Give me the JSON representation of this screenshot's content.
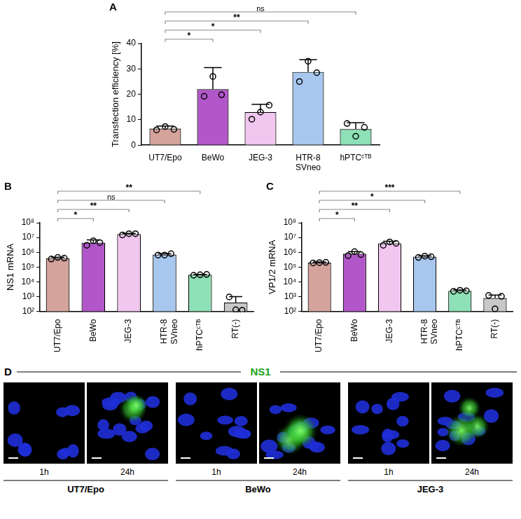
{
  "chart_data": [
    {
      "type": "bar",
      "panel_label": "A",
      "ylabel": "Transfection efficiency [%]",
      "categories": [
        "UT7/Epo",
        "BeWo",
        "JEG-3",
        "HTR-8 SVneo",
        "hPTCᶜᵀᴮ"
      ],
      "values": [
        6.5,
        22,
        13,
        28.8,
        6.3
      ],
      "errors": [
        1.0,
        8.5,
        3.0,
        4.8,
        2.5
      ],
      "points": [
        [
          6,
          7.3,
          6.2
        ],
        [
          19.2,
          27,
          19.8
        ],
        [
          10.2,
          13,
          15.7
        ],
        [
          25,
          33,
          28.5
        ],
        [
          8.5,
          3.5,
          7
        ]
      ],
      "colors": [
        "#d4a39c",
        "#b157c9",
        "#f1c6ef",
        "#a8c7ee",
        "#8ee0b6"
      ],
      "ylim": [
        0,
        40
      ],
      "yticks": [
        0,
        10,
        20,
        30,
        40
      ],
      "grid": false,
      "annotations": [
        {
          "from": "UT7/Epo",
          "to": "BeWo",
          "label": "*"
        },
        {
          "from": "UT7/Epo",
          "to": "JEG-3",
          "label": "*"
        },
        {
          "from": "UT7/Epo",
          "to": "HTR-8 SVneo",
          "label": "**"
        },
        {
          "from": "UT7/Epo",
          "to": "hPTCᶜᵀᴮ",
          "label": "ns"
        }
      ]
    },
    {
      "type": "bar",
      "panel_label": "B",
      "ylabel": "NS1 mRNA",
      "categories": [
        "UT7/Epo",
        "BeWo",
        "JEG-3",
        "HTR-8 SVneo",
        "hPTCᶜᵀᴮ",
        "RT(-)"
      ],
      "values": [
        400000,
        4500000,
        17000000,
        700000,
        30000,
        400
      ],
      "errors": [
        70000,
        2500000,
        2000000,
        100000,
        2000,
        600
      ],
      "points": [
        [
          350000,
          450000,
          400000
        ],
        [
          3000000,
          6000000,
          4500000
        ],
        [
          15000000,
          18000000,
          18000000
        ],
        [
          650000,
          650000,
          800000
        ],
        [
          28000,
          30000,
          32000
        ],
        [
          950,
          130,
          120
        ]
      ],
      "colors": [
        "#d4a39c",
        "#b157c9",
        "#f1c6ef",
        "#a8c7ee",
        "#8ee0b6",
        "#c8c8c8"
      ],
      "log": "y",
      "ylim": [
        100,
        100000000
      ],
      "yticks": [
        {
          "value": 100,
          "label": "10²"
        },
        {
          "value": 1000,
          "label": "10³"
        },
        {
          "value": 10000,
          "label": "10⁴"
        },
        {
          "value": 100000,
          "label": "10⁵"
        },
        {
          "value": 1000000,
          "label": "10⁶"
        },
        {
          "value": 10000000,
          "label": "10⁷"
        },
        {
          "value": 100000000,
          "label": "10⁸"
        }
      ],
      "grid": false,
      "annotations": [
        {
          "from": "UT7/Epo",
          "to": "BeWo",
          "label": "*"
        },
        {
          "from": "UT7/Epo",
          "to": "JEG-3",
          "label": "**"
        },
        {
          "from": "UT7/Epo",
          "to": "HTR-8 SVneo",
          "label": "ns"
        },
        {
          "from": "UT7/Epo",
          "to": "hPTCᶜᵀᴮ",
          "label": "**"
        }
      ]
    },
    {
      "type": "bar",
      "panel_label": "C",
      "ylabel": "VP1/2 mRNA",
      "categories": [
        "UT7/Epo",
        "BeWo",
        "JEG-3",
        "HTR-8 SVneo",
        "hPTCᶜᵀᴮ",
        "RT(-)"
      ],
      "values": [
        200000,
        800000,
        4000000,
        500000,
        2500,
        800
      ],
      "errors": [
        20000,
        300000,
        1500000,
        80000,
        300,
        500
      ],
      "points": [
        [
          190000,
          200000,
          210000
        ],
        [
          600000,
          1100000,
          700000
        ],
        [
          3000000,
          5000000,
          4000000
        ],
        [
          450000,
          550000,
          500000
        ],
        [
          2300,
          2700,
          2500
        ],
        [
          1200,
          150,
          1050
        ]
      ],
      "colors": [
        "#d4a39c",
        "#b157c9",
        "#f1c6ef",
        "#a8c7ee",
        "#8ee0b6",
        "#c8c8c8"
      ],
      "log": "y",
      "ylim": [
        100,
        100000000
      ],
      "yticks": [
        {
          "value": 100,
          "label": "10²"
        },
        {
          "value": 1000,
          "label": "10³"
        },
        {
          "value": 10000,
          "label": "10⁴"
        },
        {
          "value": 100000,
          "label": "10⁵"
        },
        {
          "value": 1000000,
          "label": "10⁶"
        },
        {
          "value": 10000000,
          "label": "10⁷"
        },
        {
          "value": 100000000,
          "label": "10⁸"
        }
      ],
      "grid": false,
      "annotations": [
        {
          "from": "UT7/Epo",
          "to": "BeWo",
          "label": "*"
        },
        {
          "from": "UT7/Epo",
          "to": "JEG-3",
          "label": "**"
        },
        {
          "from": "UT7/Epo",
          "to": "HTR-8 SVneo",
          "label": "*"
        },
        {
          "from": "UT7/Epo",
          "to": "hPTCᶜᵀᴮ",
          "label": "***"
        }
      ]
    }
  ],
  "panel_d": {
    "panel_label": "D",
    "title": "NS1",
    "groups": [
      {
        "name": "UT7/Epo",
        "images": [
          "1h",
          "24h"
        ]
      },
      {
        "name": "BeWo",
        "images": [
          "1h",
          "24h"
        ]
      },
      {
        "name": "JEG-3",
        "images": [
          "1h",
          "24h"
        ]
      }
    ]
  }
}
